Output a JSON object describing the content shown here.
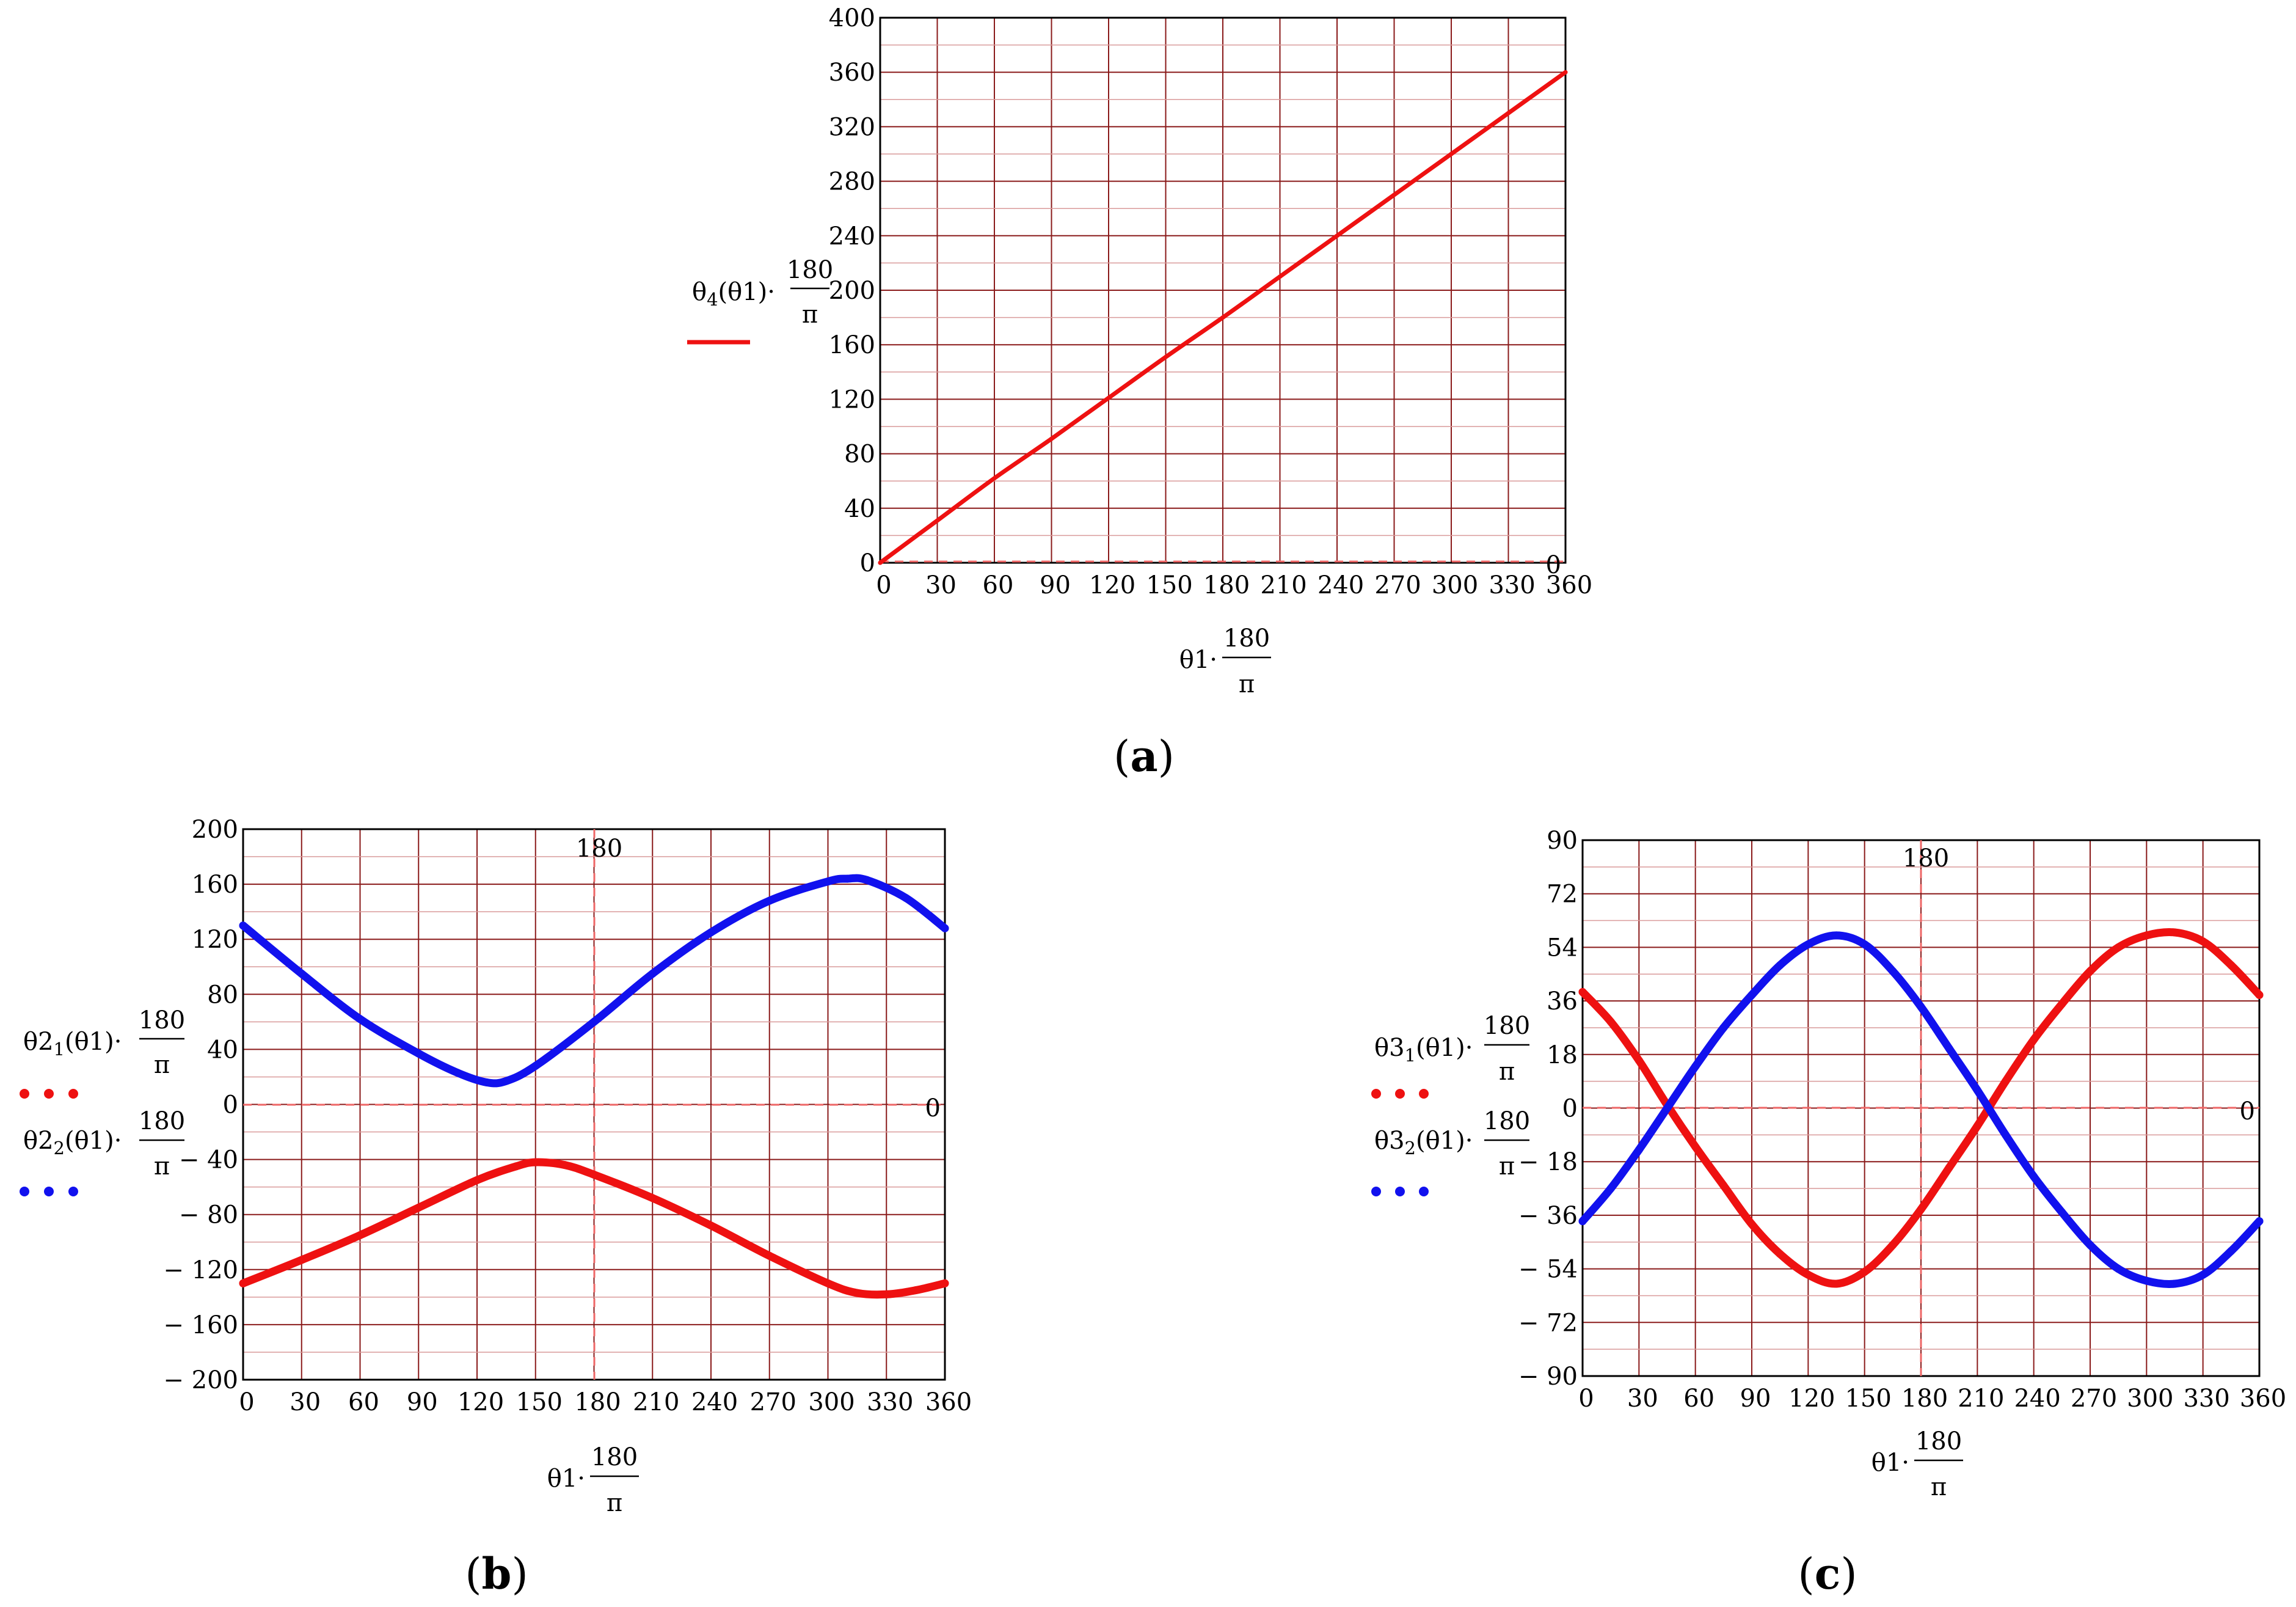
{
  "chart_data": [
    {
      "id": "a",
      "type": "line",
      "caption": {
        "open": "(",
        "letter": "a",
        "close": ")"
      },
      "xlim": [
        0,
        360
      ],
      "ylim": [
        0,
        400
      ],
      "xticks": [
        "0",
        "30",
        "60",
        "90",
        "120",
        "150",
        "180",
        "210",
        "240",
        "270",
        "300",
        "330",
        "360"
      ],
      "yticks": [
        "0",
        "40",
        "80",
        "120",
        "160",
        "200",
        "240",
        "280",
        "320",
        "360",
        "400"
      ],
      "xlabel": {
        "var": "θ1·",
        "num": "180",
        "den": "π"
      },
      "marker_label": "0",
      "series": [
        {
          "name": "θ4(θ1)·180/π",
          "legend_pre": "θ",
          "legend_sub": "4",
          "legend_post": "(θ1)·",
          "num": "180",
          "den": "π",
          "style": "solid",
          "color": "#ee1111",
          "x": [
            0,
            30,
            60,
            90,
            120,
            150,
            180,
            210,
            240,
            270,
            300,
            330,
            360
          ],
          "y": [
            0,
            31,
            62,
            91,
            121,
            151,
            180,
            210,
            240,
            270,
            300,
            330,
            360
          ]
        }
      ]
    },
    {
      "id": "b",
      "type": "line",
      "caption": {
        "open": "(",
        "letter": "b",
        "close": ")"
      },
      "xlim": [
        0,
        360
      ],
      "ylim": [
        -200,
        200
      ],
      "xticks": [
        "0",
        "30",
        "60",
        "90",
        "120",
        "150",
        "180",
        "210",
        "240",
        "270",
        "300",
        "330",
        "360"
      ],
      "yticks": [
        "− 200",
        "− 160",
        "− 120",
        "− 80",
        "− 40",
        "0",
        "40",
        "80",
        "120",
        "160",
        "200"
      ],
      "xlabel": {
        "var": "θ1·",
        "num": "180",
        "den": "π"
      },
      "marker_label": "0",
      "vline_label": "180",
      "series": [
        {
          "name": "θ2_1(θ1)·180/π",
          "legend_pre": "θ2",
          "legend_sub": "1",
          "legend_post": "(θ1)·",
          "num": "180",
          "den": "π",
          "style": "dots",
          "color": "#ee1111",
          "x": [
            0,
            30,
            60,
            90,
            120,
            140,
            150,
            165,
            180,
            210,
            240,
            270,
            300,
            315,
            330,
            345,
            360
          ],
          "y": [
            -130,
            -113,
            -95,
            -75,
            -55,
            -45,
            -42,
            -44,
            -51,
            -68,
            -88,
            -110,
            -130,
            -137,
            -138,
            -135,
            -130
          ]
        },
        {
          "name": "θ2_2(θ1)·180/π",
          "legend_pre": "θ2",
          "legend_sub": "2",
          "legend_post": "(θ1)·",
          "num": "180",
          "den": "π",
          "style": "dots",
          "color": "#1111ee",
          "x": [
            0,
            30,
            60,
            90,
            110,
            125,
            135,
            150,
            180,
            210,
            240,
            270,
            300,
            310,
            320,
            340,
            360
          ],
          "y": [
            130,
            95,
            62,
            37,
            23,
            16,
            17,
            28,
            60,
            95,
            125,
            148,
            162,
            164,
            163,
            150,
            128
          ]
        }
      ]
    },
    {
      "id": "c",
      "type": "line",
      "caption": {
        "open": "(",
        "letter": "c",
        "close": ")"
      },
      "xlim": [
        0,
        360
      ],
      "ylim": [
        -90,
        90
      ],
      "xticks": [
        "0",
        "30",
        "60",
        "90",
        "120",
        "150",
        "180",
        "210",
        "240",
        "270",
        "300",
        "330",
        "360"
      ],
      "yticks": [
        "− 90",
        "− 72",
        "− 54",
        "− 36",
        "− 18",
        "0",
        "18",
        "36",
        "54",
        "72",
        "90"
      ],
      "xlabel": {
        "var": "θ1·",
        "num": "180",
        "den": "π"
      },
      "marker_label": "0",
      "vline_label": "180",
      "series": [
        {
          "name": "θ3_1(θ1)·180/π",
          "legend_pre": "θ3",
          "legend_sub": "1",
          "legend_post": "(θ1)·",
          "num": "180",
          "den": "π",
          "style": "dots",
          "color": "#ee1111",
          "x": [
            0,
            15,
            30,
            45,
            60,
            75,
            90,
            105,
            120,
            135,
            150,
            165,
            180,
            195,
            210,
            225,
            240,
            255,
            270,
            285,
            300,
            315,
            330,
            345,
            360
          ],
          "y": [
            39,
            29,
            16,
            1,
            -13,
            -26,
            -39,
            -49,
            -56,
            -59,
            -55,
            -46,
            -34,
            -20,
            -6,
            9,
            23,
            35,
            46,
            54,
            58,
            59,
            56,
            48,
            38
          ]
        },
        {
          "name": "θ3_2(θ1)·180/π",
          "legend_pre": "θ3",
          "legend_sub": "2",
          "legend_post": "(θ1)·",
          "num": "180",
          "den": "π",
          "style": "dots",
          "color": "#1111ee",
          "x": [
            0,
            15,
            30,
            45,
            60,
            75,
            90,
            105,
            120,
            135,
            150,
            165,
            180,
            195,
            210,
            225,
            240,
            255,
            270,
            285,
            300,
            315,
            330,
            345,
            360
          ],
          "y": [
            -38,
            -27,
            -14,
            0,
            14,
            27,
            38,
            48,
            55,
            58,
            55,
            46,
            34,
            20,
            6,
            -9,
            -23,
            -35,
            -46,
            -54,
            -58,
            -59,
            -56,
            -48,
            -38
          ]
        }
      ]
    }
  ]
}
